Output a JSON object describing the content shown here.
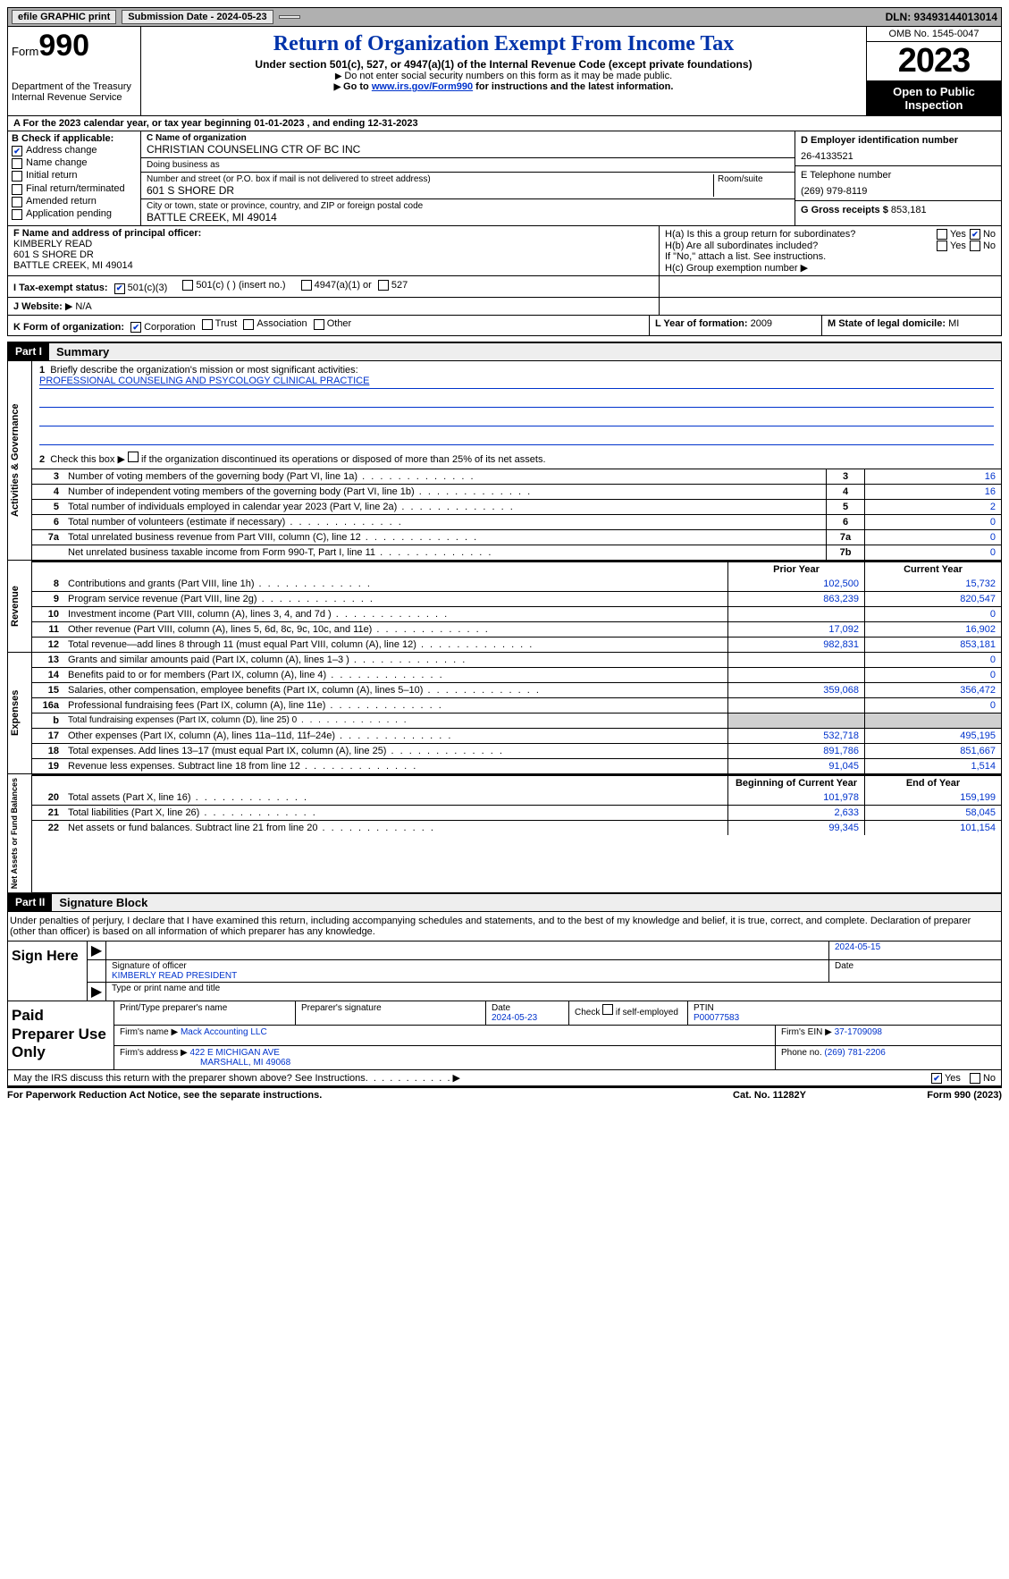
{
  "topbar": {
    "efile_label": "efile GRAPHIC print",
    "submission_label": "Submission Date - 2024-05-23",
    "dln": "DLN: 93493144013014"
  },
  "header": {
    "form_word": "Form",
    "form_num": "990",
    "dept": "Department of the Treasury Internal Revenue Service",
    "title": "Return of Organization Exempt From Income Tax",
    "sub1": "Under section 501(c), 527, or 4947(a)(1) of the Internal Revenue Code (except private foundations)",
    "sub2": "Do not enter social security numbers on this form as it may be made public.",
    "sub3_pre": "Go to ",
    "sub3_link": "www.irs.gov/Form990",
    "sub3_post": " for instructions and the latest information.",
    "omb": "OMB No. 1545-0047",
    "year": "2023",
    "open": "Open to Public Inspection"
  },
  "row_a": "A For the 2023 calendar year, or tax year beginning 01-01-2023    , and ending 12-31-2023",
  "box_b": {
    "label": "B Check if applicable:",
    "items": [
      {
        "label": "Address change",
        "checked": true
      },
      {
        "label": "Name change",
        "checked": false
      },
      {
        "label": "Initial return",
        "checked": false
      },
      {
        "label": "Final return/terminated",
        "checked": false
      },
      {
        "label": "Amended return",
        "checked": false
      },
      {
        "label": "Application pending",
        "checked": false
      }
    ]
  },
  "box_c": {
    "name_label": "C Name of organization",
    "name": "CHRISTIAN COUNSELING CTR OF BC INC",
    "dba_label": "Doing business as",
    "dba": "",
    "street_label": "Number and street (or P.O. box if mail is not delivered to street address)",
    "room_label": "Room/suite",
    "street": "601 S SHORE DR",
    "city_label": "City or town, state or province, country, and ZIP or foreign postal code",
    "city": "BATTLE CREEK, MI  49014"
  },
  "box_d": {
    "ein_label": "D Employer identification number",
    "ein": "26-4133521",
    "phone_label": "E Telephone number",
    "phone": "(269) 979-8119",
    "gross_label": "G Gross receipts $",
    "gross": "853,181"
  },
  "box_f": {
    "label": "F  Name and address of principal officer:",
    "name": "KIMBERLY READ",
    "street": "601 S SHORE DR",
    "city": "BATTLE CREEK, MI  49014"
  },
  "box_h": {
    "ha": "H(a)  Is this a group return for subordinates?",
    "hb": "H(b) Are all subordinates included?",
    "hb_note": "If \"No,\" attach a list. See instructions.",
    "hc": "H(c) Group exemption number",
    "ha_yes": false,
    "ha_no": true,
    "hb_yes": false,
    "hb_no": false,
    "yes": "Yes",
    "no": "No"
  },
  "row_i": {
    "label": "I   Tax-exempt status:",
    "c3": "501(c)(3)",
    "c": "501(c) (  ) (insert no.)",
    "c4947": "4947(a)(1) or",
    "c527": "527"
  },
  "row_j": {
    "label": "J   Website:",
    "value": "N/A",
    "prefix": "▶"
  },
  "row_k": {
    "label": "K Form of organization:",
    "opts": [
      "Corporation",
      "Trust",
      "Association",
      "Other"
    ],
    "checked": 0,
    "l_label": "L Year of formation:",
    "l_val": "2009",
    "m_label": "M State of legal domicile:",
    "m_val": "MI"
  },
  "part1": {
    "tag": "Part I",
    "title": "Summary",
    "mission_label": "Briefly describe the organization's mission or most significant activities:",
    "mission": "PROFESSIONAL COUNSELING AND PSYCOLOGY CLINICAL PRACTICE",
    "line2_label": "Check this box          if the organization discontinued its operations or disposed of more than 25% of its net assets.",
    "sections": {
      "gov": "Activities & Governance",
      "rev": "Revenue",
      "exp": "Expenses",
      "net": "Net Assets or Fund Balances"
    },
    "gov_rows": [
      {
        "n": "3",
        "d": "Number of voting members of the governing body (Part VI, line 1a)",
        "box": "3",
        "v": "16"
      },
      {
        "n": "4",
        "d": "Number of independent voting members of the governing body (Part VI, line 1b)",
        "box": "4",
        "v": "16"
      },
      {
        "n": "5",
        "d": "Total number of individuals employed in calendar year 2023 (Part V, line 2a)",
        "box": "5",
        "v": "2"
      },
      {
        "n": "6",
        "d": "Total number of volunteers (estimate if necessary)",
        "box": "6",
        "v": "0"
      },
      {
        "n": "7a",
        "d": "Total unrelated business revenue from Part VIII, column (C), line 12",
        "box": "7a",
        "v": "0"
      },
      {
        "n": "",
        "d": "Net unrelated business taxable income from Form 990-T, Part I, line 11",
        "box": "7b",
        "v": "0"
      }
    ],
    "col_hdr_prior": "Prior Year",
    "col_hdr_curr": "Current Year",
    "rev_rows": [
      {
        "n": "8",
        "d": "Contributions and grants (Part VIII, line 1h)",
        "p": "102,500",
        "c": "15,732"
      },
      {
        "n": "9",
        "d": "Program service revenue (Part VIII, line 2g)",
        "p": "863,239",
        "c": "820,547"
      },
      {
        "n": "10",
        "d": "Investment income (Part VIII, column (A), lines 3, 4, and 7d )",
        "p": "",
        "c": "0"
      },
      {
        "n": "11",
        "d": "Other revenue (Part VIII, column (A), lines 5, 6d, 8c, 9c, 10c, and 11e)",
        "p": "17,092",
        "c": "16,902"
      },
      {
        "n": "12",
        "d": "Total revenue—add lines 8 through 11 (must equal Part VIII, column (A), line 12)",
        "p": "982,831",
        "c": "853,181"
      }
    ],
    "exp_rows": [
      {
        "n": "13",
        "d": "Grants and similar amounts paid (Part IX, column (A), lines 1–3 )",
        "p": "",
        "c": "0"
      },
      {
        "n": "14",
        "d": "Benefits paid to or for members (Part IX, column (A), line 4)",
        "p": "",
        "c": "0"
      },
      {
        "n": "15",
        "d": "Salaries, other compensation, employee benefits (Part IX, column (A), lines 5–10)",
        "p": "359,068",
        "c": "356,472"
      },
      {
        "n": "16a",
        "d": "Professional fundraising fees (Part IX, column (A), line 11e)",
        "p": "",
        "c": "0"
      },
      {
        "n": "b",
        "d": "Total fundraising expenses (Part IX, column (D), line 25) 0",
        "p": "SHADE",
        "c": "SHADE",
        "small": true
      },
      {
        "n": "17",
        "d": "Other expenses (Part IX, column (A), lines 11a–11d, 11f–24e)",
        "p": "532,718",
        "c": "495,195"
      },
      {
        "n": "18",
        "d": "Total expenses. Add lines 13–17 (must equal Part IX, column (A), line 25)",
        "p": "891,786",
        "c": "851,667"
      },
      {
        "n": "19",
        "d": "Revenue less expenses. Subtract line 18 from line 12",
        "p": "91,045",
        "c": "1,514"
      }
    ],
    "col_hdr_begin": "Beginning of Current Year",
    "col_hdr_end": "End of Year",
    "net_rows": [
      {
        "n": "20",
        "d": "Total assets (Part X, line 16)",
        "p": "101,978",
        "c": "159,199"
      },
      {
        "n": "21",
        "d": "Total liabilities (Part X, line 26)",
        "p": "2,633",
        "c": "58,045"
      },
      {
        "n": "22",
        "d": "Net assets or fund balances. Subtract line 21 from line 20",
        "p": "99,345",
        "c": "101,154"
      }
    ]
  },
  "part2": {
    "tag": "Part II",
    "title": "Signature Block",
    "intro": "Under penalties of perjury, I declare that I have examined this return, including accompanying schedules and statements, and to the best of my knowledge and belief, it is true, correct, and complete. Declaration of preparer (other than officer) is based on all information of which preparer has any knowledge.",
    "sign_label": "Sign Here",
    "sig_officer_label": "Signature of officer",
    "sig_date_label": "Date",
    "sig_date": "2024-05-15",
    "officer_name": "KIMBERLY READ  PRESIDENT",
    "type_label": "Type or print name and title",
    "prep_label": "Paid Preparer Use Only",
    "prep_name_label": "Print/Type preparer's name",
    "prep_sig_label": "Preparer's signature",
    "prep_date_label": "Date",
    "prep_date": "2024-05-23",
    "selfemp_label": "Check          if self-employed",
    "ptin_label": "PTIN",
    "ptin": "P00077583",
    "firm_name_label": "Firm's name",
    "firm_name": "Mack Accounting LLC",
    "firm_ein_label": "Firm's EIN",
    "firm_ein": "37-1709098",
    "firm_addr_label": "Firm's address",
    "firm_addr1": "422 E MICHIGAN AVE",
    "firm_addr2": "MARSHALL, MI  49068",
    "firm_phone_label": "Phone no.",
    "firm_phone": "(269) 781-2206"
  },
  "discuss": {
    "q": "May the IRS discuss this return with the preparer shown above? See Instructions.",
    "yes": "Yes",
    "no": "No",
    "yes_checked": true,
    "no_checked": false
  },
  "footer": {
    "left": "For Paperwork Reduction Act Notice, see the separate instructions.",
    "mid": "Cat. No. 11282Y",
    "right": "Form 990 (2023)"
  }
}
